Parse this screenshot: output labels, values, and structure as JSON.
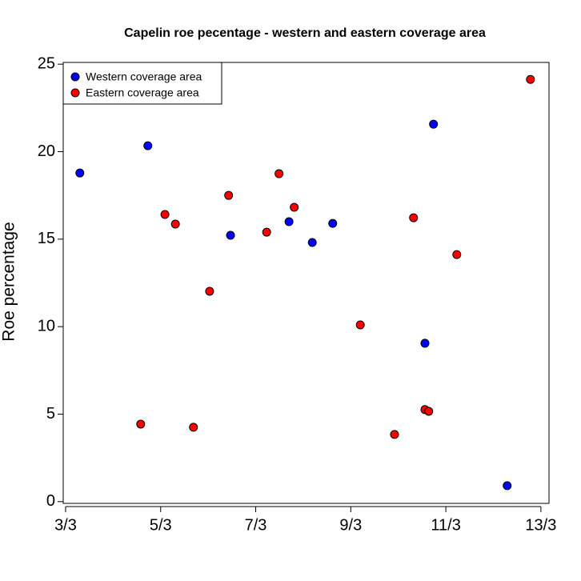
{
  "chart_data": {
    "type": "scatter",
    "title": "Capelin roe pecentage - western and eastern coverage area",
    "y_label": "Roe percentage",
    "xlim": [
      2.95,
      13.17
    ],
    "ylim": [
      -0.1,
      25.1
    ],
    "xticks": [
      {
        "value": 3,
        "label": "3/3"
      },
      {
        "value": 5,
        "label": "5/3"
      },
      {
        "value": 7,
        "label": "7/3"
      },
      {
        "value": 9,
        "label": "9/3"
      },
      {
        "value": 11,
        "label": "11/3"
      },
      {
        "value": 13,
        "label": "13/3"
      }
    ],
    "yticks": [
      0,
      5,
      10,
      15,
      20,
      25
    ],
    "legend": "top-left",
    "series": [
      {
        "name": "Western coverage area",
        "color": "#0000ff",
        "x": [
          3.3,
          4.73,
          6.47,
          7.7,
          8.19,
          8.62,
          10.74,
          10.56,
          12.29
        ],
        "values": [
          18.78,
          20.34,
          15.22,
          16.0,
          14.81,
          15.9,
          21.57,
          9.05,
          0.91
        ]
      },
      {
        "name": "Eastern coverage area",
        "color": "#ff0000",
        "x": [
          12.78,
          5.09,
          5.31,
          4.58,
          5.69,
          6.03,
          6.43,
          7.23,
          7.49,
          7.81,
          9.2,
          9.92,
          10.32,
          10.56,
          10.64,
          11.23
        ],
        "values": [
          24.13,
          16.41,
          15.86,
          4.43,
          4.25,
          12.02,
          17.5,
          15.4,
          18.74,
          16.82,
          10.1,
          3.84,
          16.22,
          5.26,
          5.16,
          14.12
        ]
      }
    ]
  }
}
